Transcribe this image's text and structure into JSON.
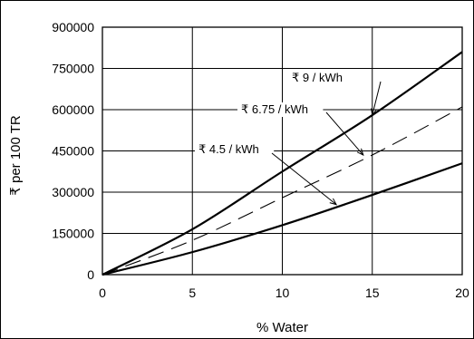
{
  "chart_data": {
    "type": "line",
    "xlabel": "% Water",
    "ylabel": "₹ per 100 TR",
    "xlim": [
      0,
      20
    ],
    "ylim": [
      0,
      900000
    ],
    "x_ticks": [
      "0",
      "5",
      "10",
      "15",
      "20"
    ],
    "y_ticks": [
      "0",
      "150000",
      "300000",
      "450000",
      "600000",
      "750000",
      "900000"
    ],
    "grid": true,
    "series": [
      {
        "name": "₹ 9 / kWh",
        "style": "solid",
        "x": [
          0,
          5,
          10,
          15,
          20
        ],
        "y": [
          0,
          165000,
          375000,
          580000,
          810000
        ]
      },
      {
        "name": "₹ 6.75 / kWh",
        "style": "dashed",
        "x": [
          0,
          5,
          10,
          15,
          20
        ],
        "y": [
          0,
          125000,
          280000,
          435000,
          610000
        ]
      },
      {
        "name": "₹ 4.5 / kWh",
        "style": "solid",
        "x": [
          0,
          5,
          10,
          15,
          20
        ],
        "y": [
          0,
          82000,
          180000,
          290000,
          405000
        ]
      }
    ],
    "annotations": [
      {
        "text": "₹ 9 / kWh",
        "series": 0,
        "x": 15,
        "y": 580000
      },
      {
        "text": "₹ 6.75 / kWh",
        "series": 1,
        "x": 14.5,
        "y": 435000
      },
      {
        "text": "₹ 4.5 / kWh",
        "series": 2,
        "x": 13,
        "y": 255000
      }
    ]
  }
}
